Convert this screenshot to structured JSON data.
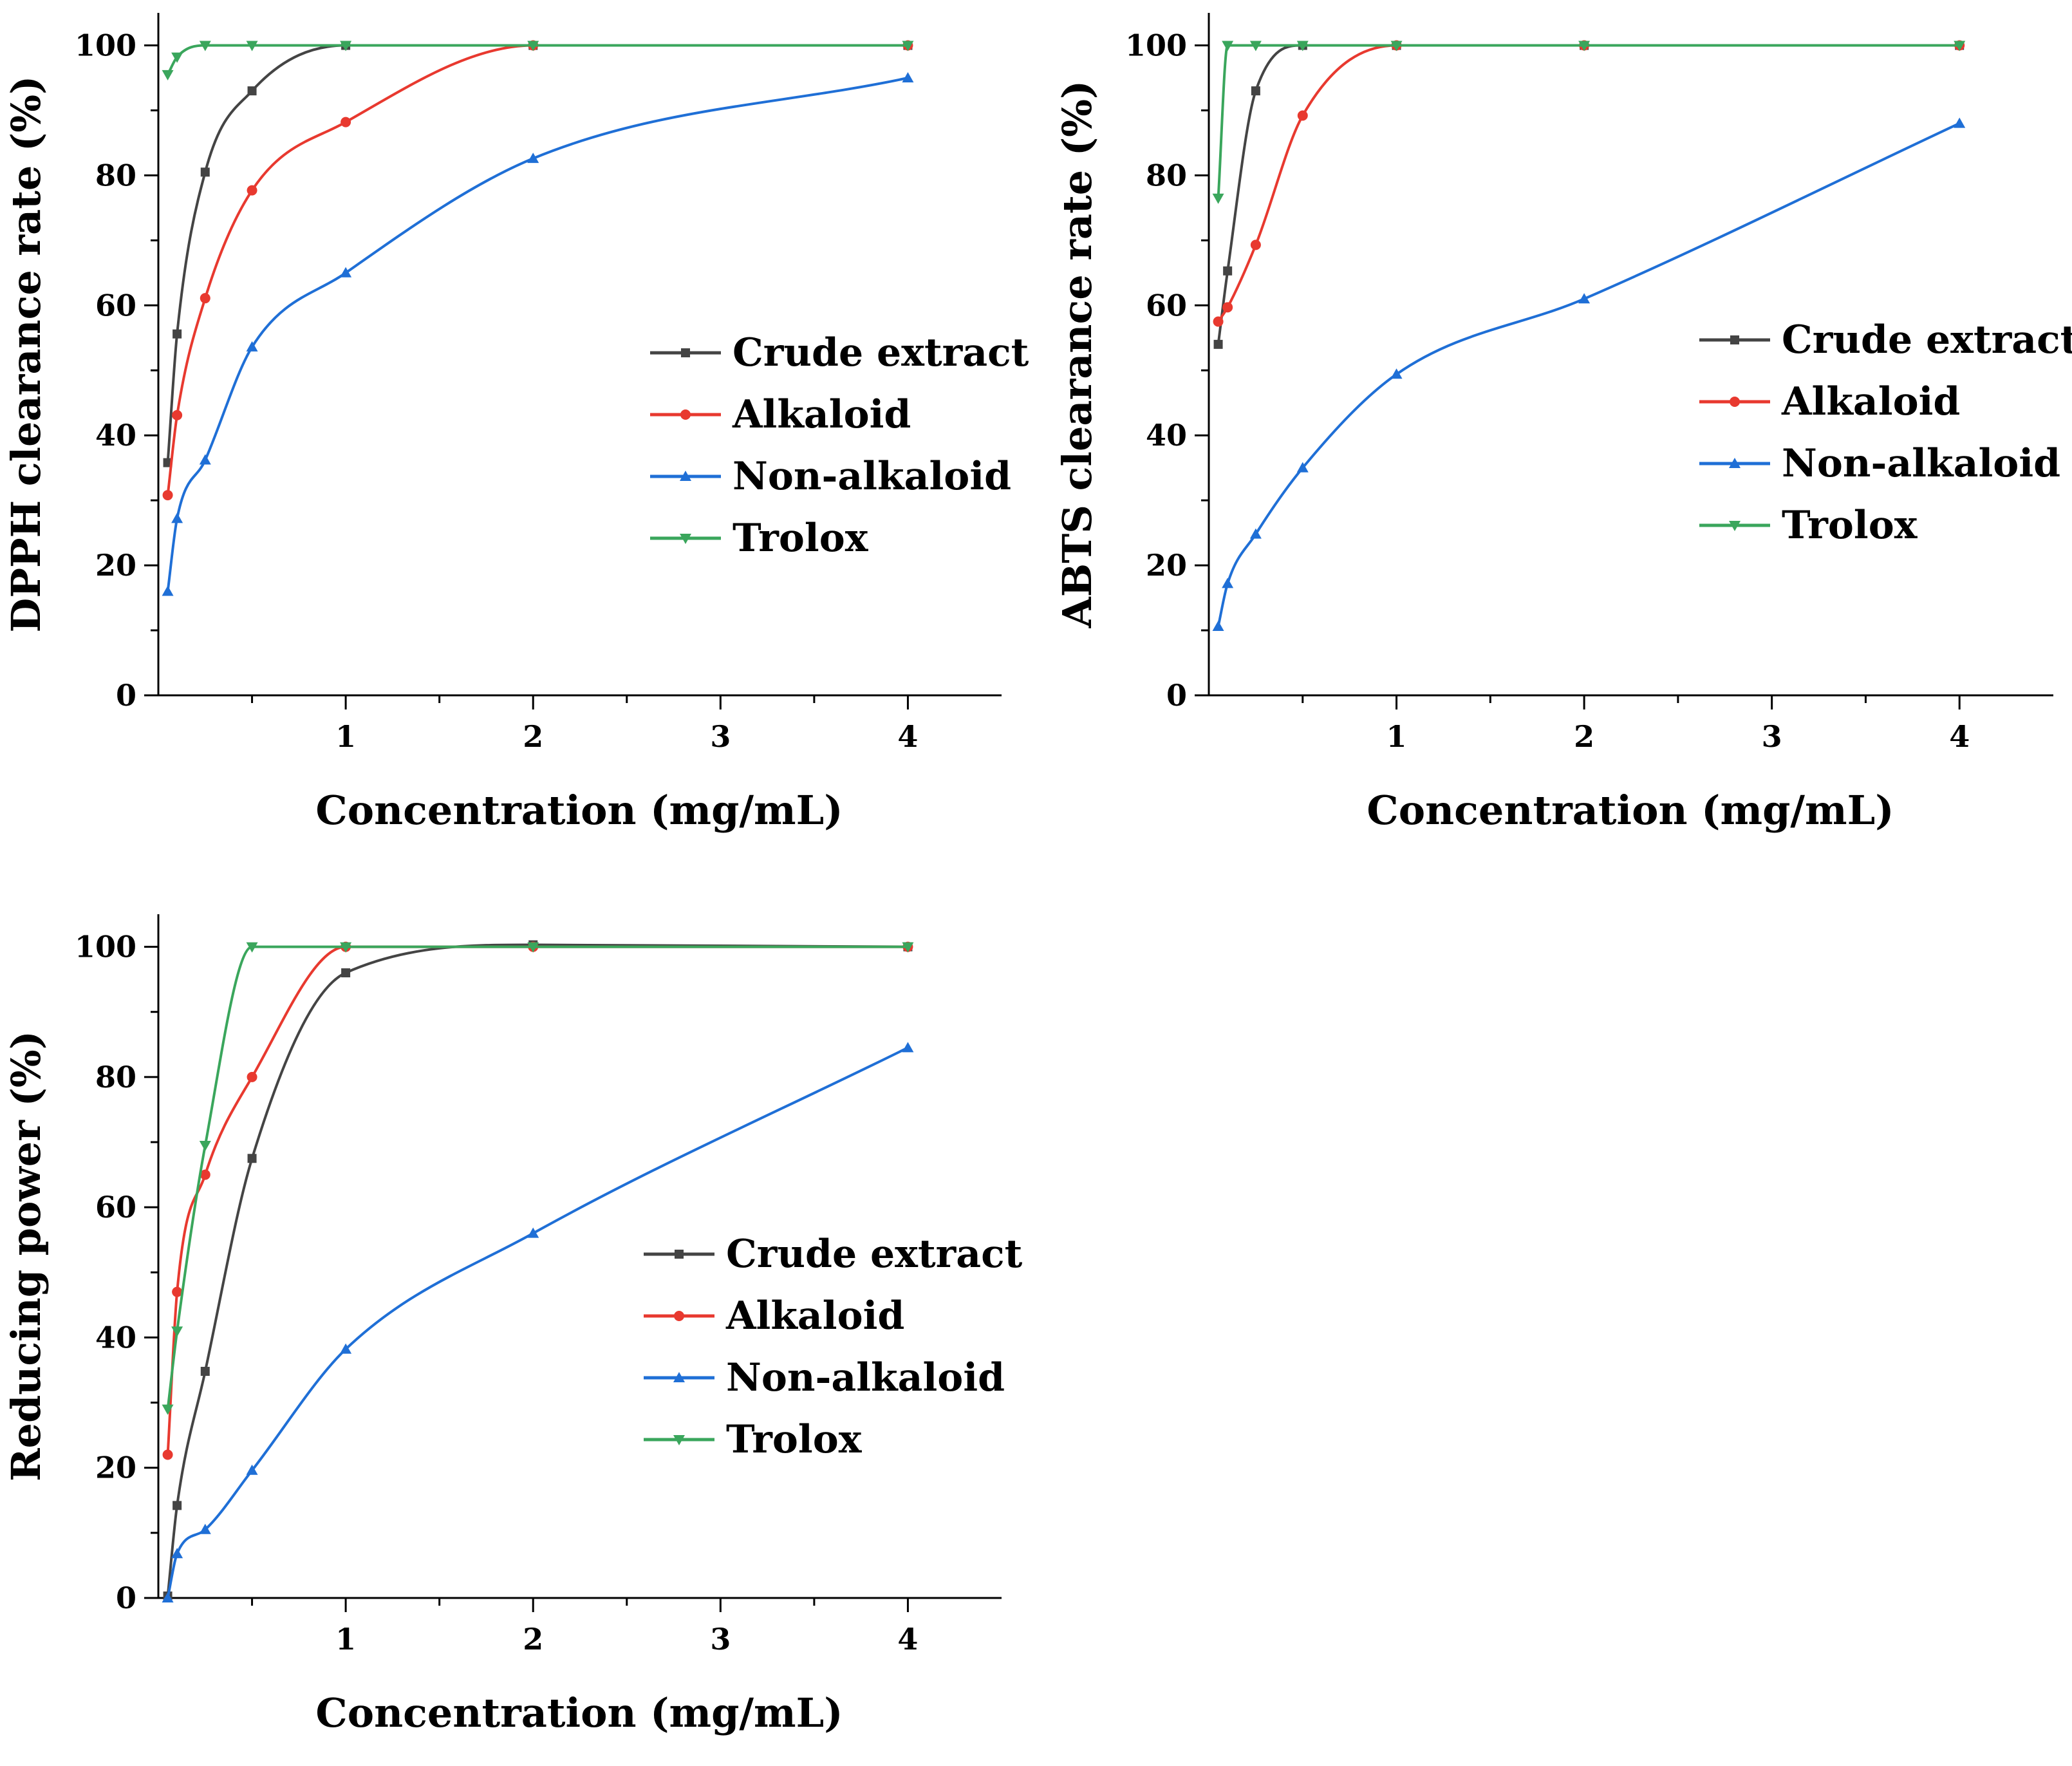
{
  "chart_data": [
    {
      "type": "line",
      "xlabel": "Concentration (mg/mL)",
      "ylabel": "DPPH clearance rate (%)",
      "xlim": [
        0,
        4.5
      ],
      "ylim": [
        0,
        105
      ],
      "xticks": [
        1,
        2,
        3,
        4
      ],
      "yticks": [
        0,
        20,
        40,
        60,
        80,
        100
      ],
      "grid": false,
      "legend_position": "center-right",
      "series": [
        {
          "name": "Crude extract",
          "color": "#444444",
          "marker": "square",
          "x": [
            0.05,
            0.1,
            0.25,
            0.5,
            1,
            2,
            4
          ],
          "y": [
            35.8,
            55.6,
            80.5,
            93.0,
            100.0,
            100.0,
            100.0
          ]
        },
        {
          "name": "Alkaloid",
          "color": "#e8392f",
          "marker": "circle",
          "x": [
            0.05,
            0.1,
            0.25,
            0.5,
            1,
            2,
            4
          ],
          "y": [
            30.8,
            43.1,
            61.1,
            77.7,
            88.2,
            100.0,
            100.0
          ]
        },
        {
          "name": "Non-alkaloid",
          "color": "#1f6fd6",
          "marker": "triangle-up",
          "x": [
            0.05,
            0.1,
            0.25,
            0.5,
            1,
            2,
            4
          ],
          "y": [
            16.0,
            27.2,
            36.2,
            53.6,
            65.0,
            82.6,
            95.0
          ]
        },
        {
          "name": "Trolox",
          "color": "#3aa65c",
          "marker": "triangle-down",
          "x": [
            0.05,
            0.1,
            0.25,
            0.5,
            1,
            2,
            4
          ],
          "y": [
            95.5,
            98.2,
            100.0,
            100.0,
            100.0,
            100.0,
            100.0
          ]
        }
      ]
    },
    {
      "type": "line",
      "xlabel": "Concentration (mg/mL)",
      "ylabel": "ABTS clearance rate (%)",
      "xlim": [
        0,
        4.5
      ],
      "ylim": [
        0,
        105
      ],
      "xticks": [
        1,
        2,
        3,
        4
      ],
      "yticks": [
        0,
        20,
        40,
        60,
        80,
        100
      ],
      "grid": false,
      "legend_position": "center-right",
      "series": [
        {
          "name": "Crude extract",
          "color": "#444444",
          "marker": "square",
          "x": [
            0.05,
            0.1,
            0.25,
            0.5,
            1,
            2,
            4
          ],
          "y": [
            54.0,
            65.3,
            93.0,
            100.0,
            100.0,
            100.0,
            100.0
          ]
        },
        {
          "name": "Alkaloid",
          "color": "#e8392f",
          "marker": "circle",
          "x": [
            0.05,
            0.1,
            0.25,
            0.5,
            1,
            2,
            4
          ],
          "y": [
            57.5,
            59.7,
            69.3,
            89.2,
            100.0,
            100.0,
            100.0
          ]
        },
        {
          "name": "Non-alkaloid",
          "color": "#1f6fd6",
          "marker": "triangle-up",
          "x": [
            0.05,
            0.1,
            0.25,
            0.5,
            1,
            2,
            4
          ],
          "y": [
            10.6,
            17.2,
            24.8,
            35.0,
            49.4,
            61.0,
            88.0
          ]
        },
        {
          "name": "Trolox",
          "color": "#3aa65c",
          "marker": "triangle-down",
          "x": [
            0.05,
            0.1,
            0.25,
            0.5,
            1,
            2,
            4
          ],
          "y": [
            76.5,
            100.0,
            100.0,
            100.0,
            100.0,
            100.0,
            100.0
          ]
        }
      ]
    },
    {
      "type": "line",
      "xlabel": "Concentration (mg/mL)",
      "ylabel": "Reducing power (%)",
      "xlim": [
        0,
        4.5
      ],
      "ylim": [
        0,
        105
      ],
      "xticks": [
        1,
        2,
        3,
        4
      ],
      "yticks": [
        0,
        20,
        40,
        60,
        80,
        100
      ],
      "grid": false,
      "legend_position": "center-right",
      "series": [
        {
          "name": "Crude extract",
          "color": "#444444",
          "marker": "square",
          "x": [
            0.05,
            0.1,
            0.25,
            0.5,
            1,
            2,
            4
          ],
          "y": [
            0.3,
            14.2,
            34.8,
            67.5,
            96.0,
            100.3,
            100.0
          ]
        },
        {
          "name": "Alkaloid",
          "color": "#e8392f",
          "marker": "circle",
          "x": [
            0.05,
            0.1,
            0.25,
            0.5,
            1,
            2,
            4
          ],
          "y": [
            22.0,
            47.0,
            65.0,
            80.0,
            100.0,
            100.0,
            100.0
          ]
        },
        {
          "name": "Non-alkaloid",
          "color": "#1f6fd6",
          "marker": "triangle-up",
          "x": [
            0.05,
            0.1,
            0.25,
            0.5,
            1,
            2,
            4
          ],
          "y": [
            0.0,
            6.8,
            10.5,
            19.6,
            38.2,
            56.0,
            84.5
          ]
        },
        {
          "name": "Trolox",
          "color": "#3aa65c",
          "marker": "triangle-down",
          "x": [
            0.05,
            0.1,
            0.25,
            0.5,
            1,
            2,
            4
          ],
          "y": [
            29.0,
            41.0,
            69.5,
            100.0,
            100.0,
            100.0,
            100.0
          ]
        }
      ]
    }
  ]
}
